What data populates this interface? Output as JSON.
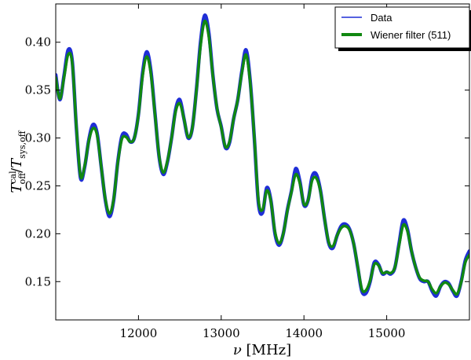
{
  "chart_data": {
    "type": "line",
    "xlabel": "ν [MHz]",
    "ylabel": "T_off^cal / T_sys,off",
    "xlim": [
      11000,
      16000
    ],
    "ylim": [
      0.11,
      0.44
    ],
    "x_ticks": [
      12000,
      13000,
      14000,
      15000
    ],
    "y_ticks": [
      0.15,
      0.2,
      0.25,
      0.3,
      0.35,
      0.4
    ],
    "x_tick_labels": [
      "12000",
      "13000",
      "14000",
      "15000"
    ],
    "y_tick_labels": [
      "0.15",
      "0.20",
      "0.25",
      "0.30",
      "0.35",
      "0.40"
    ],
    "grid": false,
    "legend_position": "top-right",
    "series": [
      {
        "name": "Data",
        "color": "#1f2ed6",
        "x": [
          11000,
          11050,
          11100,
          11150,
          11200,
          11250,
          11300,
          11350,
          11400,
          11450,
          11500,
          11550,
          11600,
          11650,
          11700,
          11750,
          11800,
          11850,
          11900,
          11950,
          12000,
          12050,
          12100,
          12150,
          12200,
          12250,
          12300,
          12350,
          12400,
          12450,
          12500,
          12550,
          12600,
          12650,
          12700,
          12750,
          12800,
          12850,
          12900,
          12950,
          13000,
          13050,
          13100,
          13150,
          13200,
          13250,
          13300,
          13350,
          13400,
          13450,
          13500,
          13550,
          13600,
          13650,
          13700,
          13750,
          13800,
          13850,
          13900,
          13950,
          14000,
          14050,
          14100,
          14150,
          14200,
          14250,
          14300,
          14350,
          14400,
          14450,
          14500,
          14550,
          14600,
          14650,
          14700,
          14750,
          14800,
          14850,
          14900,
          14950,
          15000,
          15050,
          15100,
          15150,
          15200,
          15250,
          15300,
          15350,
          15400,
          15450,
          15500,
          15550,
          15600,
          15650,
          15700,
          15750,
          15800,
          15850,
          15900,
          15950,
          16000
        ],
        "values": [
          0.366,
          0.34,
          0.365,
          0.392,
          0.38,
          0.31,
          0.258,
          0.27,
          0.298,
          0.314,
          0.305,
          0.27,
          0.235,
          0.218,
          0.235,
          0.275,
          0.302,
          0.304,
          0.296,
          0.3,
          0.325,
          0.368,
          0.39,
          0.37,
          0.325,
          0.28,
          0.262,
          0.275,
          0.3,
          0.33,
          0.34,
          0.32,
          0.3,
          0.31,
          0.35,
          0.4,
          0.428,
          0.41,
          0.365,
          0.33,
          0.312,
          0.29,
          0.295,
          0.32,
          0.34,
          0.37,
          0.392,
          0.36,
          0.3,
          0.232,
          0.222,
          0.248,
          0.235,
          0.2,
          0.188,
          0.2,
          0.225,
          0.245,
          0.268,
          0.255,
          0.23,
          0.235,
          0.26,
          0.262,
          0.245,
          0.215,
          0.19,
          0.185,
          0.198,
          0.208,
          0.21,
          0.205,
          0.19,
          0.165,
          0.14,
          0.138,
          0.15,
          0.17,
          0.168,
          0.158,
          0.16,
          0.158,
          0.165,
          0.19,
          0.214,
          0.205,
          0.182,
          0.165,
          0.153,
          0.15,
          0.15,
          0.14,
          0.135,
          0.145,
          0.15,
          0.148,
          0.14,
          0.135,
          0.15,
          0.172,
          0.182
        ]
      },
      {
        "name": "Wiener filter (511)",
        "color": "#118811",
        "x": [
          11000,
          11050,
          11100,
          11150,
          11200,
          11250,
          11300,
          11350,
          11400,
          11450,
          11500,
          11550,
          11600,
          11650,
          11700,
          11750,
          11800,
          11850,
          11900,
          11950,
          12000,
          12050,
          12100,
          12150,
          12200,
          12250,
          12300,
          12350,
          12400,
          12450,
          12500,
          12550,
          12600,
          12650,
          12700,
          12750,
          12800,
          12850,
          12900,
          12950,
          13000,
          13050,
          13100,
          13150,
          13200,
          13250,
          13300,
          13350,
          13400,
          13450,
          13500,
          13550,
          13600,
          13650,
          13700,
          13750,
          13800,
          13850,
          13900,
          13950,
          14000,
          14050,
          14100,
          14150,
          14200,
          14250,
          14300,
          14350,
          14400,
          14450,
          14500,
          14550,
          14600,
          14650,
          14700,
          14750,
          14800,
          14850,
          14900,
          14950,
          15000,
          15050,
          15100,
          15150,
          15200,
          15250,
          15300,
          15350,
          15400,
          15450,
          15500,
          15550,
          15600,
          15650,
          15700,
          15750,
          15800,
          15850,
          15900,
          15950,
          16000
        ],
        "values": [
          0.363,
          0.341,
          0.363,
          0.387,
          0.378,
          0.311,
          0.26,
          0.271,
          0.297,
          0.31,
          0.303,
          0.27,
          0.236,
          0.221,
          0.236,
          0.274,
          0.299,
          0.301,
          0.296,
          0.3,
          0.324,
          0.365,
          0.385,
          0.367,
          0.324,
          0.281,
          0.264,
          0.276,
          0.3,
          0.328,
          0.336,
          0.32,
          0.301,
          0.31,
          0.349,
          0.396,
          0.422,
          0.406,
          0.364,
          0.331,
          0.311,
          0.291,
          0.296,
          0.32,
          0.34,
          0.368,
          0.387,
          0.358,
          0.301,
          0.235,
          0.225,
          0.245,
          0.234,
          0.202,
          0.19,
          0.2,
          0.224,
          0.244,
          0.262,
          0.253,
          0.231,
          0.235,
          0.256,
          0.258,
          0.244,
          0.215,
          0.191,
          0.187,
          0.198,
          0.206,
          0.208,
          0.204,
          0.19,
          0.166,
          0.142,
          0.141,
          0.151,
          0.168,
          0.167,
          0.159,
          0.16,
          0.159,
          0.165,
          0.188,
          0.209,
          0.203,
          0.182,
          0.165,
          0.154,
          0.151,
          0.15,
          0.142,
          0.138,
          0.145,
          0.149,
          0.147,
          0.141,
          0.137,
          0.149,
          0.17,
          0.178
        ]
      }
    ]
  }
}
